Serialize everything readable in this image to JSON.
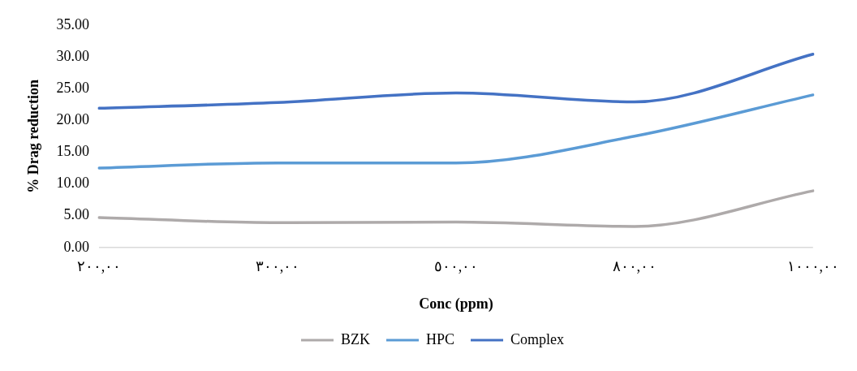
{
  "chart_data": {
    "type": "line",
    "xlabel": "Conc (ppm)",
    "ylabel": "% Drag reduction",
    "categories": [
      "٢٠٠,٠٠",
      "٣٠٠,٠٠",
      "٥٠٠,٠٠",
      "٨٠٠,٠٠",
      "١٠٠٠,٠٠"
    ],
    "series": [
      {
        "name": "BZK",
        "color": "#aeaaaa",
        "values": [
          4.7,
          3.9,
          4.0,
          3.3,
          8.9
        ]
      },
      {
        "name": "HPC",
        "color": "#5b9bd5",
        "values": [
          12.5,
          13.3,
          13.3,
          17.5,
          24.0
        ]
      },
      {
        "name": "Complex",
        "color": "#4472c4",
        "values": [
          21.9,
          22.8,
          24.3,
          22.9,
          30.4
        ]
      }
    ],
    "ylim": [
      0,
      35
    ],
    "yticks": [
      {
        "value": 0,
        "label": "0.00"
      },
      {
        "value": 5,
        "label": "5.00"
      },
      {
        "value": 10,
        "label": "10.00"
      },
      {
        "value": 15,
        "label": "15.00"
      },
      {
        "value": 20,
        "label": "20.00"
      },
      {
        "value": 25,
        "label": "25.00"
      },
      {
        "value": 30,
        "label": "30.00"
      },
      {
        "value": 35,
        "label": "35.00"
      }
    ],
    "grid": false,
    "legend": "bottom",
    "marker": "none",
    "line_style": "solid"
  }
}
